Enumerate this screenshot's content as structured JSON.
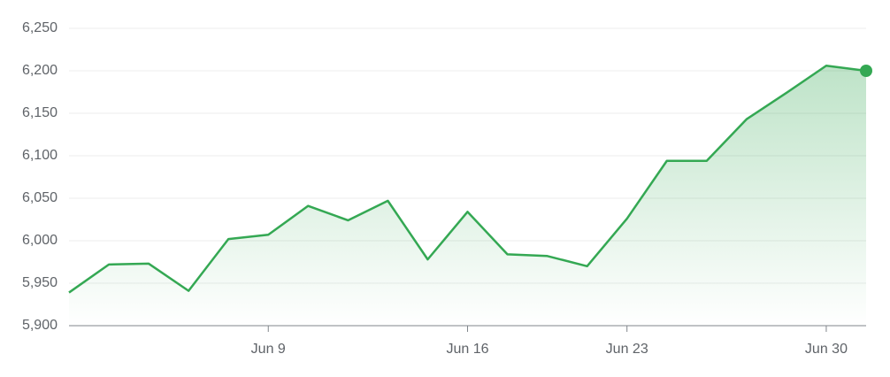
{
  "chart_data": {
    "type": "line",
    "categories": [
      null,
      null,
      null,
      null,
      null,
      "Jun 9",
      null,
      null,
      null,
      null,
      "Jun 16",
      null,
      null,
      null,
      "Jun 23",
      null,
      null,
      null,
      null,
      "Jun 30",
      null
    ],
    "values": [
      5939,
      5972,
      5973,
      5941,
      6002,
      6007,
      6041,
      6024,
      6047,
      5978,
      6034,
      5984,
      5982,
      5970,
      6026,
      6094,
      6094,
      6143,
      6174,
      6206,
      6200
    ],
    "color": "#34a853",
    "ylim": [
      5900,
      6250
    ],
    "yticks": [
      {
        "value": 5900,
        "label": "5,900"
      },
      {
        "value": 5950,
        "label": "5,950"
      },
      {
        "value": 6000,
        "label": "6,000"
      },
      {
        "value": 6050,
        "label": "6,050"
      },
      {
        "value": 6100,
        "label": "6,100"
      },
      {
        "value": 6150,
        "label": "6,150"
      },
      {
        "value": 6200,
        "label": "6,200"
      },
      {
        "value": 6250,
        "label": "6,250"
      }
    ],
    "grid": true
  }
}
